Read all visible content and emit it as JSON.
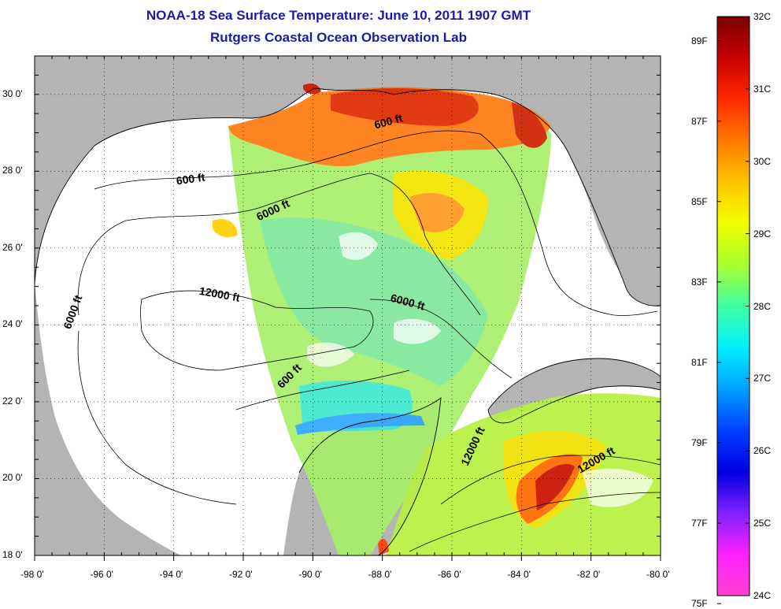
{
  "title": {
    "line1": "NOAA-18 Sea Surface Temperature:  June 10, 2011 1907 GMT",
    "line2": "Rutgers Coastal Ocean Observation Lab"
  },
  "map": {
    "lon_range": [
      -98,
      -80
    ],
    "lat_range": [
      18,
      31
    ],
    "lon_ticks": [
      "-98 0'",
      "-96 0'",
      "-94 0'",
      "-92 0'",
      "-90 0'",
      "-88 0'",
      "-86 0'",
      "-84 0'",
      "-82 0'",
      "-80 0'"
    ],
    "lat_ticks": [
      "30 0'",
      "28 0'",
      "26 0'",
      "24 0'",
      "22 0'",
      "20 0'",
      "18 0'"
    ],
    "land_color": "#b4b4b4",
    "water_nodata_color": "#ffffff",
    "grid": "dotted",
    "contour_labels": [
      {
        "text": "600 ft",
        "lon": -93.5,
        "lat": 27.7,
        "angle": -8
      },
      {
        "text": "6000 ft",
        "lon": -91.1,
        "lat": 26.9,
        "angle": -25
      },
      {
        "text": "600 ft",
        "lon": -87.8,
        "lat": 29.2,
        "angle": -15
      },
      {
        "text": "12000 ft",
        "lon": -92.7,
        "lat": 24.7,
        "angle": 10
      },
      {
        "text": "6000 ft",
        "lon": -87.3,
        "lat": 24.5,
        "angle": 15
      },
      {
        "text": "6000 ft",
        "lon": -96.8,
        "lat": 24.3,
        "angle": -70
      },
      {
        "text": "600 ft",
        "lon": -90.6,
        "lat": 22.6,
        "angle": -45
      },
      {
        "text": "12000 ft",
        "lon": -85.3,
        "lat": 20.8,
        "angle": -65
      },
      {
        "text": "12000 ft",
        "lon": -81.8,
        "lat": 20.4,
        "angle": -30
      }
    ]
  },
  "colorbar": {
    "celsius_labels": [
      "32C",
      "31C",
      "30C",
      "29C",
      "28C",
      "27C",
      "26C",
      "25C",
      "24C"
    ],
    "fahrenheit_labels": [
      "89F",
      "87F",
      "85F",
      "83F",
      "81F",
      "79F",
      "77F",
      "75F"
    ],
    "stops": [
      "#7a0000",
      "#c80000",
      "#ff2a00",
      "#ff7a00",
      "#ffc400",
      "#f0ff00",
      "#a8ff30",
      "#40ffa0",
      "#00f0ff",
      "#00a0ff",
      "#0040ff",
      "#0000e0",
      "#8020ff",
      "#ff20ff",
      "#ff40d0"
    ]
  }
}
